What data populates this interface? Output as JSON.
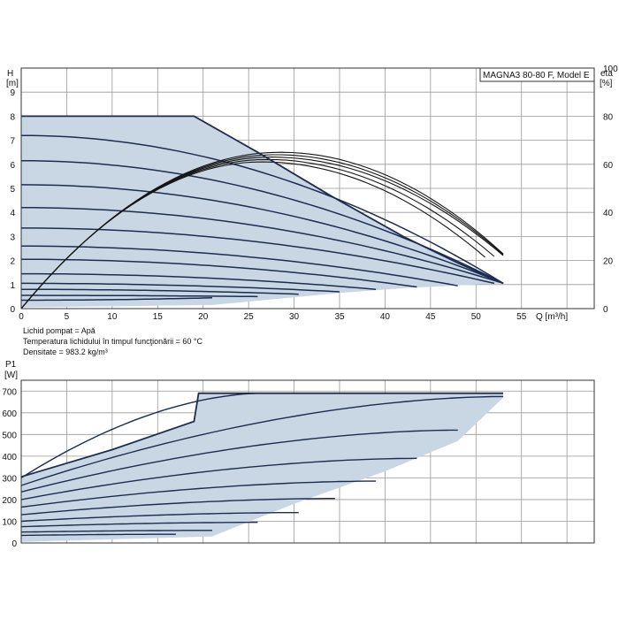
{
  "title": "MAGNA3 80-80 F, Model E",
  "info": {
    "line1": "Lichid pompat = Apă",
    "line2": "Temperatura lichidului în timpul funcţionării = 60 °C",
    "line3": "Densitate = 983.2 kg/m³"
  },
  "colors": {
    "fill": "#c9d7e5",
    "curve": "#1c2d4f",
    "eta": "#151515"
  },
  "chart_data": [
    {
      "type": "line",
      "name": "head-curves",
      "ylabel_line1": "H",
      "ylabel_line2": "[m]",
      "xlabel": "Q [m³/h]",
      "y2label_line1": "eta",
      "y2label_line2": "[%]",
      "xlim": [
        0,
        63
      ],
      "ylim": [
        0,
        10
      ],
      "y2lim": [
        0,
        100
      ],
      "grid": true,
      "xticks": [
        "0",
        "5",
        "10",
        "15",
        "20",
        "25",
        "30",
        "35",
        "40",
        "45",
        "50",
        "55"
      ],
      "yticks": [
        "0",
        "1",
        "2",
        "3",
        "4",
        "5",
        "6",
        "7",
        "8",
        "9"
      ],
      "y2ticks": [
        "0",
        "20",
        "40",
        "60",
        "80",
        "100"
      ],
      "max_curve": [
        [
          0,
          8.0
        ],
        [
          19,
          8.0
        ],
        [
          26,
          6.5
        ],
        [
          34,
          4.7
        ],
        [
          42,
          3.0
        ],
        [
          48,
          1.9
        ],
        [
          53,
          1.05
        ]
      ],
      "envelope_bottom": [
        [
          0,
          0.05
        ],
        [
          21,
          0.15
        ],
        [
          28,
          0.4
        ],
        [
          35,
          0.65
        ],
        [
          42,
          0.85
        ],
        [
          50,
          1.0
        ],
        [
          53,
          1.05
        ]
      ],
      "head_series": [
        {
          "H0": 7.2,
          "Qend": 53,
          "Hend": 1.05
        },
        {
          "H0": 6.15,
          "Qend": 53,
          "Hend": 1.05
        },
        {
          "H0": 5.15,
          "Qend": 53,
          "Hend": 1.05
        },
        {
          "H0": 4.2,
          "Qend": 53,
          "Hend": 1.05
        },
        {
          "H0": 3.35,
          "Qend": 52,
          "Hend": 1.05
        },
        {
          "H0": 2.6,
          "Qend": 48,
          "Hend": 0.95
        },
        {
          "H0": 2.05,
          "Qend": 43.5,
          "Hend": 0.9
        },
        {
          "H0": 1.45,
          "Qend": 39,
          "Hend": 0.8
        },
        {
          "H0": 1.05,
          "Qend": 35,
          "Hend": 0.7
        },
        {
          "H0": 0.8,
          "Qend": 30.5,
          "Hend": 0.6
        },
        {
          "H0": 0.55,
          "Qend": 26,
          "Hend": 0.5
        },
        {
          "H0": 0.35,
          "Qend": 21,
          "Hend": 0.45
        }
      ],
      "eta_series": [
        {
          "Qpeak": 28.5,
          "eta_peak": 65,
          "Qend": 53
        },
        {
          "Qpeak": 28.0,
          "eta_peak": 64,
          "Qend": 53
        },
        {
          "Qpeak": 27.5,
          "eta_peak": 63,
          "Qend": 53
        },
        {
          "Qpeak": 27.0,
          "eta_peak": 62,
          "Qend": 52
        },
        {
          "Qpeak": 26.5,
          "eta_peak": 61,
          "Qend": 51
        }
      ]
    },
    {
      "type": "line",
      "name": "power-curves",
      "ylabel_line1": "P1",
      "ylabel_line2": "[W]",
      "xlim": [
        0,
        63
      ],
      "ylim": [
        0,
        750
      ],
      "grid": true,
      "yticks": [
        "0",
        "100",
        "200",
        "300",
        "400",
        "500",
        "600",
        "700"
      ],
      "max_curve": [
        [
          0,
          305
        ],
        [
          10,
          430
        ],
        [
          19,
          560
        ],
        [
          19.5,
          690
        ],
        [
          53,
          690
        ]
      ],
      "envelope_bottom": [
        [
          0,
          5
        ],
        [
          21,
          30
        ],
        [
          30,
          180
        ],
        [
          40,
          330
        ],
        [
          48,
          470
        ],
        [
          53,
          670
        ]
      ],
      "power_series": [
        {
          "P0": 300,
          "Qend": 26.5,
          "Pend": 690
        },
        {
          "P0": 265,
          "Qend": 53,
          "Pend": 675
        },
        {
          "P0": 235,
          "Qend": 48,
          "Pend": 520
        },
        {
          "P0": 200,
          "Qend": 43.5,
          "Pend": 390
        },
        {
          "P0": 165,
          "Qend": 39,
          "Pend": 285
        },
        {
          "P0": 130,
          "Qend": 34.5,
          "Pend": 205
        },
        {
          "P0": 100,
          "Qend": 30.5,
          "Pend": 140
        },
        {
          "P0": 75,
          "Qend": 26,
          "Pend": 95
        },
        {
          "P0": 50,
          "Qend": 21,
          "Pend": 58
        },
        {
          "P0": 35,
          "Qend": 17,
          "Pend": 40
        }
      ]
    }
  ]
}
